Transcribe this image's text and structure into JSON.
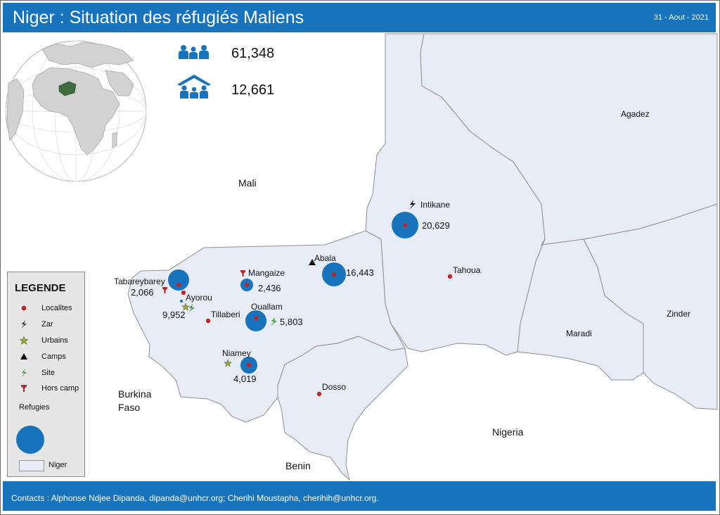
{
  "header": {
    "title": "Niger : Situation des réfugiés Maliens",
    "date": "31 - Aout - 2021"
  },
  "stats": {
    "total_refugees": "61,348",
    "households": "12,661",
    "total_icon": "people-group-icon",
    "household_icon": "house-family-icon"
  },
  "regions": {
    "mali": "Mali",
    "agadez": "Agadez",
    "zinder": "Zinder",
    "maradi": "Maradi",
    "nigeria": "Nigeria",
    "benin": "Benin",
    "burkina_line1": "Burkina",
    "burkina_line2": "Faso"
  },
  "sites": {
    "intikane": {
      "name": "Intikane",
      "value": "20,629"
    },
    "abala": {
      "name": "Abala",
      "value": "16,443"
    },
    "mangaize": {
      "name": "Mangaize",
      "value": "2,436"
    },
    "ouallam": {
      "name": "Ouallam",
      "value": "5,803"
    },
    "tabareybarey": {
      "name": "Tabareybarey",
      "value": "2,066"
    },
    "ayorou": {
      "name": "Ayorou",
      "value": "9,952"
    },
    "niamey": {
      "name": "Niamey",
      "value": "4,019"
    }
  },
  "localities": {
    "tahoua": "Tahoua",
    "tillaberi": "Tillaberi",
    "dosso": "Dosso"
  },
  "legend": {
    "title": "LEGENDE",
    "localites": "Localites",
    "zar": "Zar",
    "urbains": "Urbains",
    "camps": "Camps",
    "site": "Site",
    "hors_camp": "Hors camp",
    "refugies": "Refugies",
    "niger": "Niger"
  },
  "footer": {
    "contacts": "Contacts : Alphonse Ndjee Dipanda, dipanda@unhcr.org; Cherihi Moustapha, cherihih@unhcr.org."
  },
  "colors": {
    "brand_blue": "#1873bd",
    "niger_fill": "#e8ecf7",
    "locality_red": "#c0272d",
    "site_green": "#3a9b3a",
    "urban_star": "#9aa63a",
    "globe_land": "#d2d2d2",
    "niger_on_globe": "#3d6b3d"
  }
}
